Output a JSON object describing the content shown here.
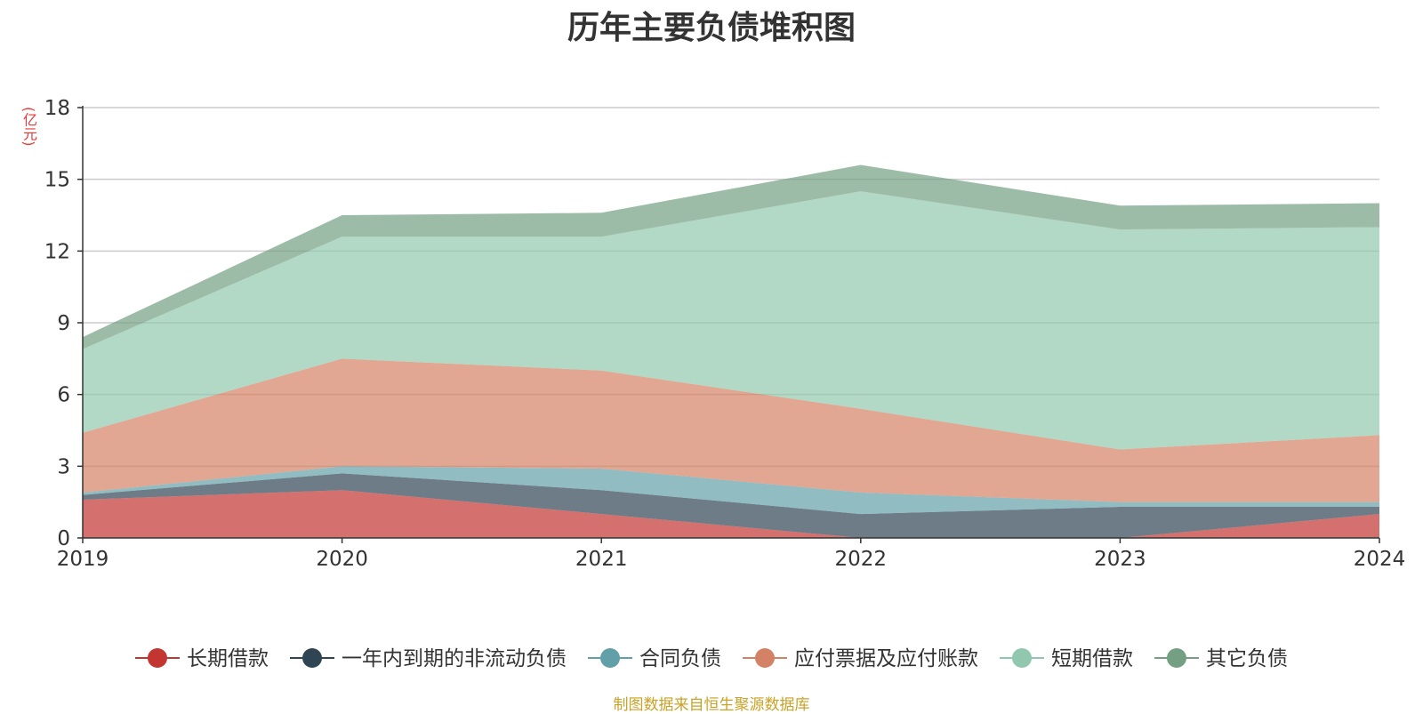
{
  "chart_data": {
    "type": "area",
    "title": "历年主要负债堆积图",
    "unit_label": "(亿元)",
    "source_note": "制图数据来自恒生聚源数据库",
    "x": [
      "2019",
      "2020",
      "2021",
      "2022",
      "2023",
      "2024"
    ],
    "ylim": [
      0,
      18
    ],
    "yticks": [
      0,
      3,
      6,
      9,
      12,
      15,
      18
    ],
    "grid": true,
    "legend_position": "bottom",
    "stacked": true,
    "series": [
      {
        "name": "长期借款",
        "color": "#c23531",
        "values": [
          1.6,
          2.0,
          1.0,
          0.0,
          0.0,
          1.0
        ]
      },
      {
        "name": "一年内到期的非流动负债",
        "color": "#2f4554",
        "values": [
          0.2,
          0.7,
          1.0,
          1.0,
          1.3,
          0.3
        ]
      },
      {
        "name": "合同负债",
        "color": "#61a0a8",
        "values": [
          0.1,
          0.3,
          0.9,
          0.9,
          0.2,
          0.2
        ]
      },
      {
        "name": "应付票据及应付账款",
        "color": "#d48265",
        "values": [
          2.5,
          4.5,
          4.1,
          3.5,
          2.2,
          2.8
        ]
      },
      {
        "name": "短期借款",
        "color": "#91c7ae",
        "values": [
          3.5,
          5.1,
          5.6,
          9.1,
          9.2,
          8.7
        ]
      },
      {
        "name": "其它负债",
        "color": "#749f83",
        "values": [
          0.5,
          0.9,
          1.0,
          1.1,
          1.0,
          1.0
        ]
      }
    ]
  }
}
